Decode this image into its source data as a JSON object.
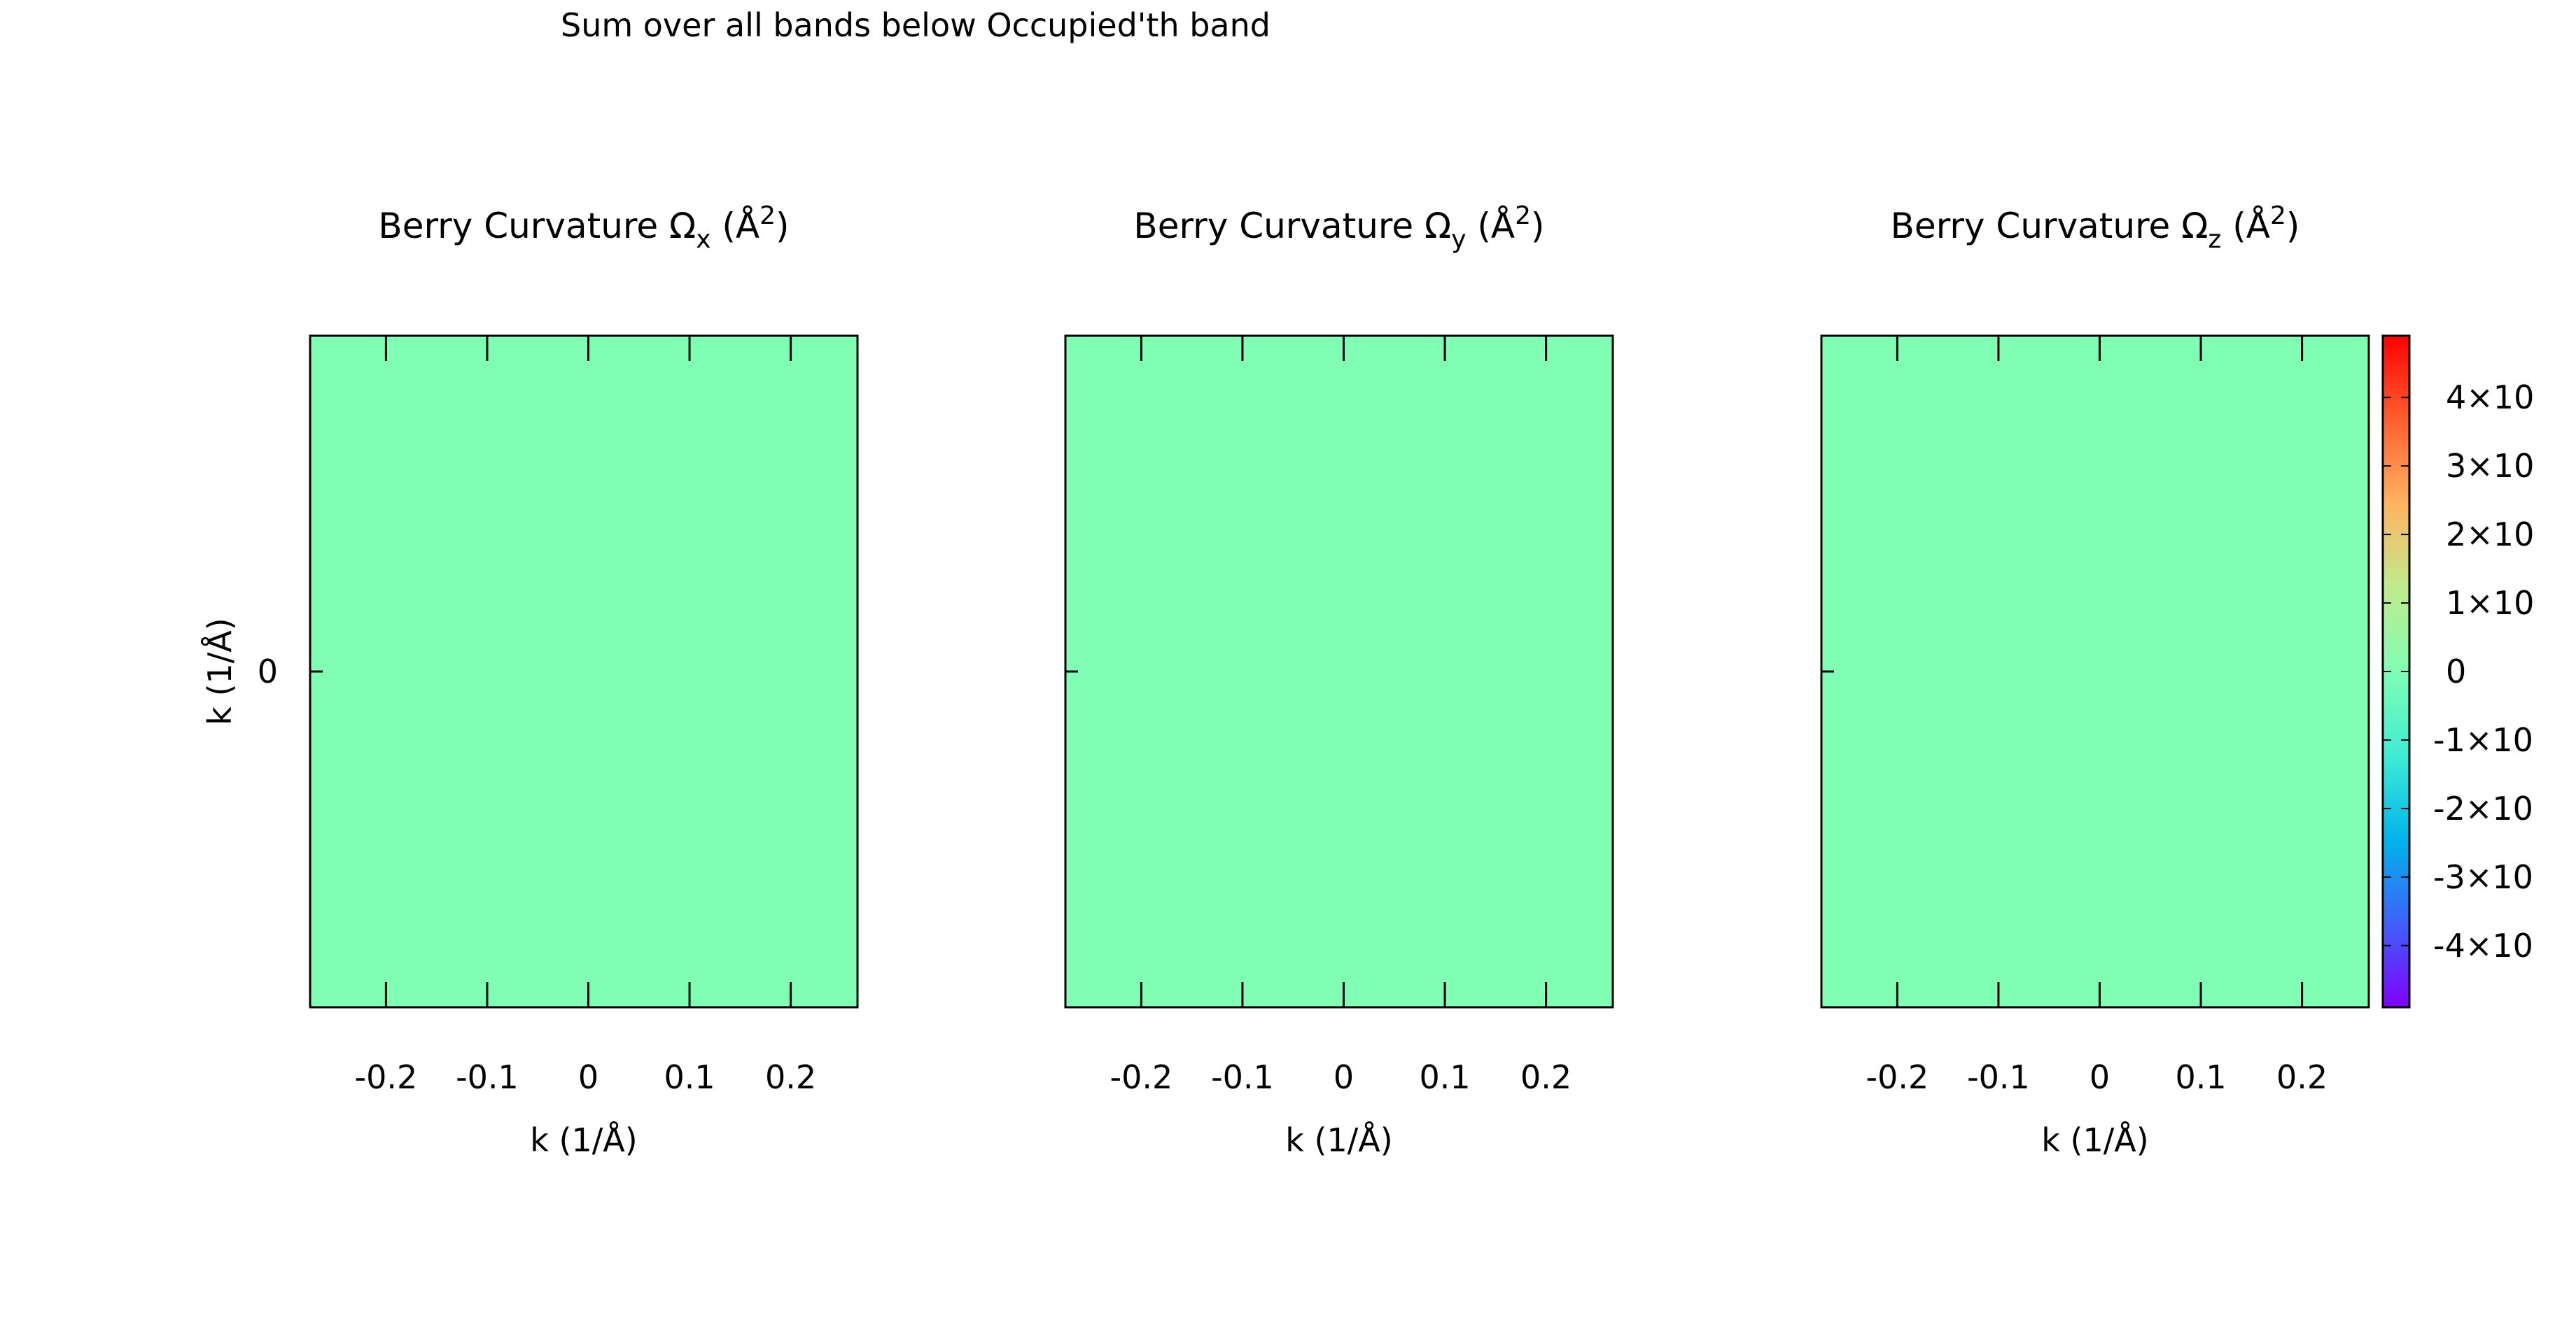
{
  "figure_title": "Sum over all bands below Occupied'th band",
  "chart_data": {
    "type": "heatmap",
    "shared_ylabel": "k (1/Å)",
    "y_ticks": [
      {
        "value": 0,
        "label": "0"
      }
    ],
    "panels": [
      {
        "title_base": "Berry Curvature Ω",
        "title_sub": "x",
        "title_unit_open": " (Å",
        "title_unit_sup": "2",
        "title_unit_close": ")",
        "xlabel": "k (1/Å)",
        "x_ticks": [
          {
            "value": -0.2,
            "label": "-0.2"
          },
          {
            "value": -0.1,
            "label": "-0.1"
          },
          {
            "value": 0,
            "label": "0"
          },
          {
            "value": 0.1,
            "label": "0.1"
          },
          {
            "value": 0.2,
            "label": "0.2"
          }
        ],
        "values": [
          [
            0
          ]
        ]
      },
      {
        "title_base": "Berry Curvature Ω",
        "title_sub": "y",
        "title_unit_open": " (Å",
        "title_unit_sup": "2",
        "title_unit_close": ")",
        "xlabel": "k (1/Å)",
        "x_ticks": [
          {
            "value": -0.2,
            "label": "-0.2"
          },
          {
            "value": -0.1,
            "label": "-0.1"
          },
          {
            "value": 0,
            "label": "0"
          },
          {
            "value": 0.1,
            "label": "0.1"
          },
          {
            "value": 0.2,
            "label": "0.2"
          }
        ],
        "values": [
          [
            0
          ]
        ]
      },
      {
        "title_base": "Berry Curvature Ω",
        "title_sub": "z",
        "title_unit_open": " (Å",
        "title_unit_sup": "2",
        "title_unit_close": ")",
        "xlabel": "k (1/Å)",
        "x_ticks": [
          {
            "value": -0.2,
            "label": "-0.2"
          },
          {
            "value": -0.1,
            "label": "-0.1"
          },
          {
            "value": 0,
            "label": "0"
          },
          {
            "value": 0.1,
            "label": "0.1"
          },
          {
            "value": 0.2,
            "label": "0.2"
          }
        ],
        "values": [
          [
            0
          ]
        ]
      }
    ],
    "colorbar": {
      "ticks": [
        {
          "label": "4×10",
          "value": 4
        },
        {
          "label": "3×10",
          "value": 3
        },
        {
          "label": "2×10",
          "value": 2
        },
        {
          "label": "1×10",
          "value": 1
        },
        {
          "label": "0",
          "value": 0
        },
        {
          "label": "-1×10",
          "value": -1
        },
        {
          "label": "-2×10",
          "value": -2
        },
        {
          "label": "-3×10",
          "value": -3
        },
        {
          "label": "-4×10",
          "value": -4
        }
      ],
      "range": [
        -4.9,
        4.9
      ],
      "colors": [
        "#7f00ff",
        "#3f61fa",
        "#00b4eb",
        "#40ecd4",
        "#80feb3",
        "#c0eb8d",
        "#ffb360",
        "#ff5f30",
        "#ff0000"
      ],
      "zero_color": "#80ffb4"
    }
  }
}
